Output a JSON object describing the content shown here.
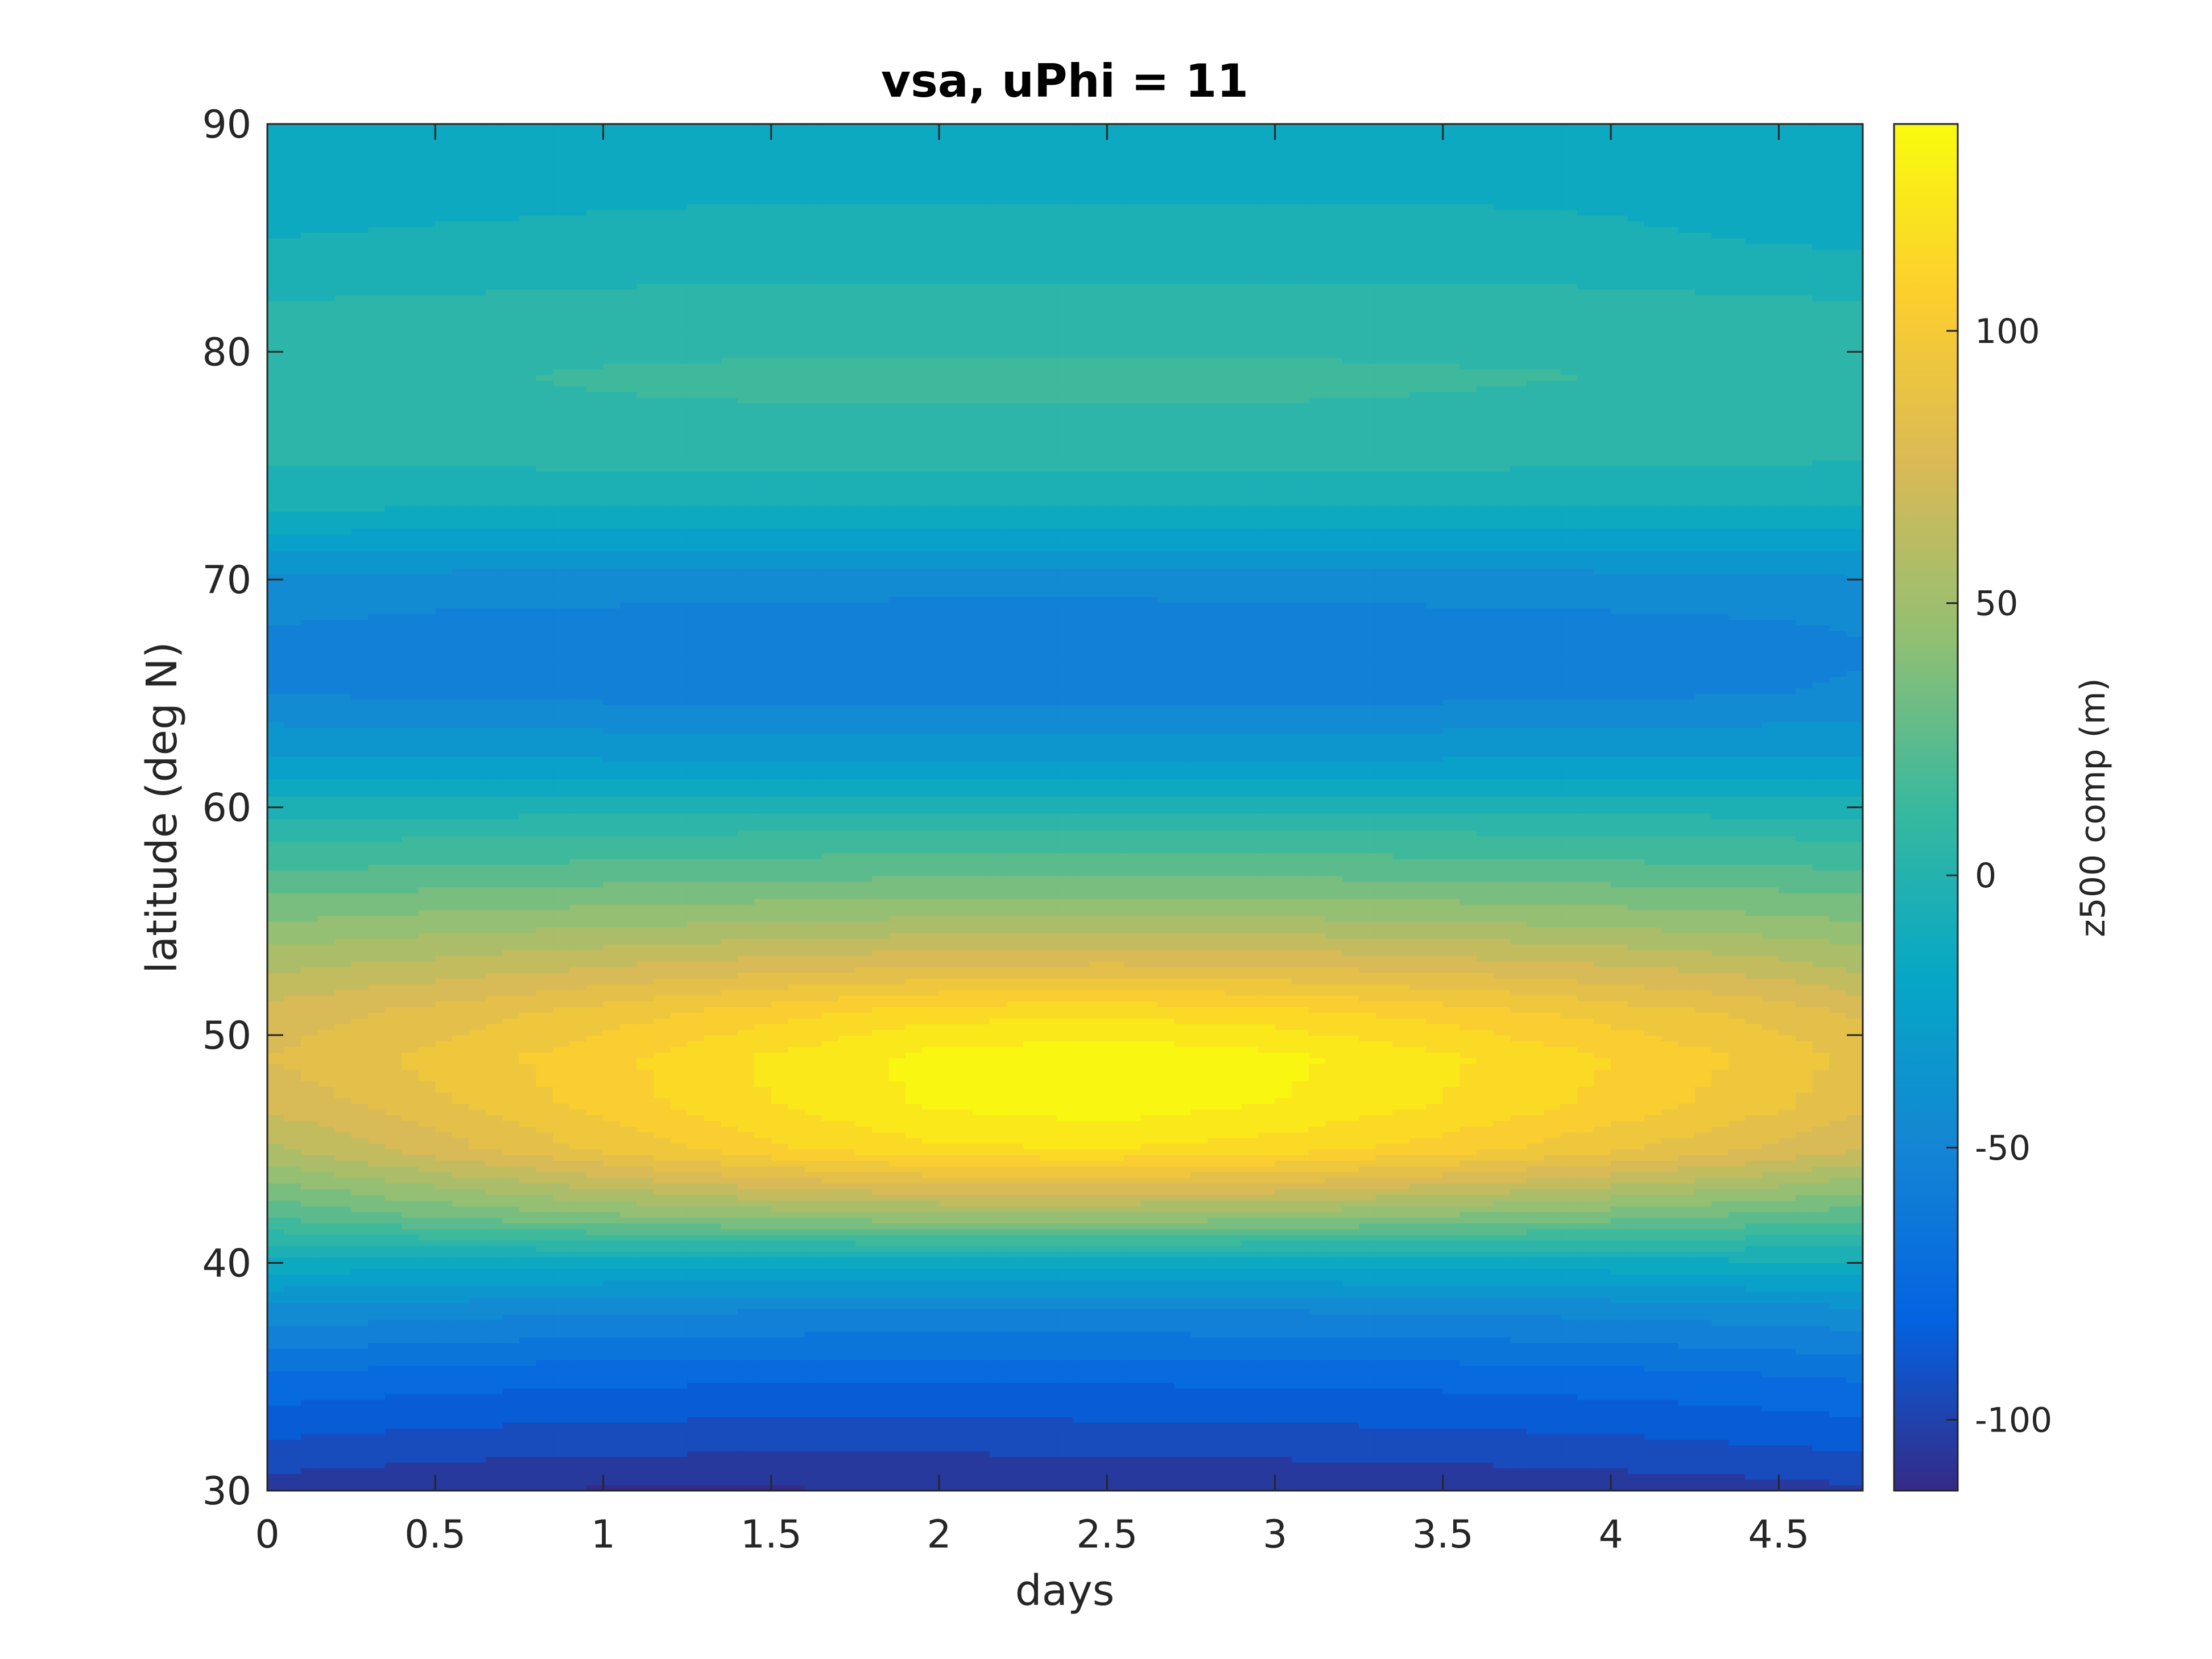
{
  "chart_data": {
    "type": "heatmap",
    "subtype": "filled-contour",
    "title": "vsa, uPhi = 11",
    "xlabel": "days",
    "ylabel": "latitude (deg N)",
    "xlim": [
      0,
      4.75
    ],
    "ylim": [
      30,
      90
    ],
    "xticks": [
      0,
      0.5,
      1,
      1.5,
      2,
      2.5,
      3,
      3.5,
      4,
      4.5
    ],
    "xtick_labels": [
      "0",
      "0.5",
      "1",
      "1.5",
      "2",
      "2.5",
      "3",
      "3.5",
      "4",
      "4.5"
    ],
    "yticks": [
      30,
      40,
      50,
      60,
      70,
      80,
      90
    ],
    "ytick_labels": [
      "30",
      "40",
      "50",
      "60",
      "70",
      "80",
      "90"
    ],
    "colorbar": {
      "label": "z500 comp (m)",
      "colormap": "parula",
      "clim": [
        -113,
        138
      ],
      "ticks": [
        -100,
        -50,
        0,
        50,
        100
      ],
      "tick_labels": [
        "-100",
        "-50",
        "0",
        "50",
        "100"
      ]
    },
    "contour_step": 10,
    "x": [
      0,
      0.5,
      1,
      1.5,
      2,
      2.5,
      3,
      3.5,
      4,
      4.5,
      4.75
    ],
    "y": [
      30,
      32,
      35,
      38,
      40,
      42,
      45,
      47,
      49,
      51,
      53,
      55,
      57,
      59,
      62,
      65,
      67,
      70,
      73,
      76,
      79,
      82,
      85,
      88,
      90
    ],
    "z": [
      [
        -105,
        -109,
        -111,
        -111,
        -110,
        -110,
        -109,
        -108,
        -106,
        -104,
        -102
      ],
      [
        -92,
        -95,
        -97,
        -98,
        -98,
        -97,
        -96,
        -95,
        -93,
        -90,
        -88
      ],
      [
        -72,
        -75,
        -77,
        -78,
        -78,
        -78,
        -77,
        -76,
        -74,
        -71,
        -69
      ],
      [
        -42,
        -45,
        -48,
        -49,
        -50,
        -50,
        -49,
        -48,
        -46,
        -43,
        -41
      ],
      [
        -14,
        -15,
        -16,
        -16,
        -16,
        -16,
        -16,
        -15,
        -14,
        -12,
        -11
      ],
      [
        20,
        30,
        37,
        42,
        45,
        45,
        43,
        38,
        33,
        26,
        22
      ],
      [
        58,
        75,
        92,
        108,
        118,
        120,
        115,
        105,
        92,
        78,
        70
      ],
      [
        72,
        88,
        104,
        120,
        132,
        136,
        130,
        120,
        107,
        92,
        82
      ],
      [
        80,
        93,
        107,
        122,
        134,
        138,
        133,
        122,
        110,
        96,
        86
      ],
      [
        74,
        84,
        94,
        106,
        116,
        118,
        114,
        106,
        96,
        86,
        78
      ],
      [
        58,
        64,
        70,
        76,
        80,
        82,
        80,
        76,
        71,
        64,
        58
      ],
      [
        40,
        44,
        47,
        50,
        52,
        53,
        52,
        50,
        47,
        43,
        40
      ],
      [
        22,
        24,
        26,
        28,
        29,
        29,
        29,
        28,
        26,
        24,
        22
      ],
      [
        6,
        7,
        8,
        9,
        10,
        10,
        10,
        9,
        8,
        7,
        6
      ],
      [
        -28,
        -28,
        -29,
        -29,
        -29,
        -29,
        -29,
        -29,
        -28,
        -28,
        -28
      ],
      [
        -50,
        -52,
        -53,
        -54,
        -54,
        -54,
        -54,
        -53,
        -52,
        -50,
        -48
      ],
      [
        -54,
        -57,
        -58,
        -59,
        -60,
        -60,
        -59,
        -58,
        -57,
        -55,
        -52
      ],
      [
        -42,
        -44,
        -45,
        -46,
        -46,
        -46,
        -46,
        -45,
        -44,
        -43,
        -41
      ],
      [
        -10,
        -11,
        -11,
        -11,
        -11,
        -11,
        -11,
        -11,
        -11,
        -11,
        -12
      ],
      [
        5,
        6,
        7,
        7,
        7,
        7,
        7,
        7,
        6,
        5,
        4
      ],
      [
        8,
        9,
        11,
        12,
        12,
        12,
        12,
        11,
        10,
        9,
        8
      ],
      [
        1,
        2,
        3,
        4,
        4,
        4,
        4,
        4,
        3,
        2,
        1
      ],
      [
        -10,
        -9,
        -8,
        -7,
        -7,
        -7,
        -7,
        -7,
        -8,
        -11,
        -13
      ],
      [
        -15,
        -14,
        -13,
        -13,
        -13,
        -13,
        -13,
        -13,
        -14,
        -18,
        -20
      ],
      [
        -16,
        -15,
        -14,
        -14,
        -14,
        -14,
        -14,
        -14,
        -15,
        -18,
        -20
      ]
    ]
  }
}
